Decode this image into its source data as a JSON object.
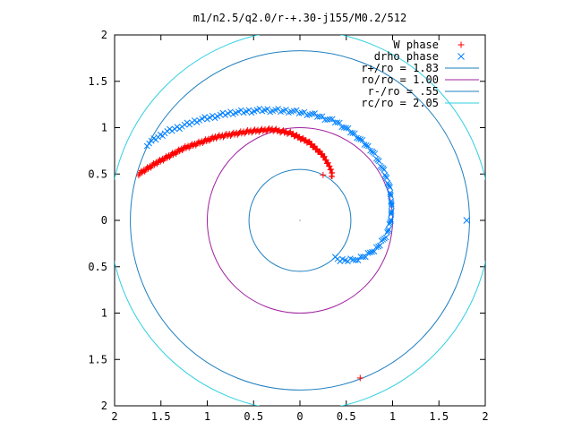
{
  "chart_data": {
    "type": "scatter",
    "title": "m1/n2.5/q2.0/r-+.30-j155/M0.2/512",
    "xlim": [
      -2,
      2
    ],
    "ylim": [
      -2,
      2
    ],
    "x_tick_labels": [
      "2",
      "1.5",
      "1",
      "0.5",
      "0",
      "0.5",
      "1",
      "1.5",
      "2"
    ],
    "y_tick_labels": [
      "2",
      "1.5",
      "1",
      "0.5",
      "0",
      "0.5",
      "1",
      "1.5",
      "2"
    ],
    "grid": false,
    "legend_position": "top-right",
    "series": [
      {
        "name": "W phase",
        "marker": "plus",
        "color": "#ff0000",
        "path": [
          [
            -1.74,
            0.5
          ],
          [
            -1.55,
            0.62
          ],
          [
            -1.25,
            0.78
          ],
          [
            -0.9,
            0.9
          ],
          [
            -0.55,
            0.96
          ],
          [
            -0.3,
            0.98
          ],
          [
            -0.1,
            0.94
          ],
          [
            0.1,
            0.84
          ],
          [
            0.25,
            0.7
          ],
          [
            0.32,
            0.58
          ],
          [
            0.35,
            0.5
          ],
          [
            0.34,
            0.47
          ]
        ],
        "points": [
          [
            0.65,
            -1.7
          ],
          [
            0.25,
            0.49
          ]
        ]
      },
      {
        "name": "drho phase",
        "marker": "cross",
        "color": "#0080ff",
        "path": [
          [
            -1.65,
            0.82
          ],
          [
            -1.45,
            0.95
          ],
          [
            -1.1,
            1.08
          ],
          [
            -0.75,
            1.16
          ],
          [
            -0.4,
            1.19
          ],
          [
            -0.1,
            1.18
          ],
          [
            0.15,
            1.14
          ],
          [
            0.4,
            1.06
          ],
          [
            0.6,
            0.92
          ],
          [
            0.78,
            0.75
          ],
          [
            0.9,
            0.55
          ],
          [
            0.97,
            0.35
          ],
          [
            0.99,
            0.15
          ],
          [
            0.98,
            0.0
          ],
          [
            0.94,
            -0.15
          ],
          [
            0.85,
            -0.28
          ],
          [
            0.72,
            -0.38
          ],
          [
            0.58,
            -0.43
          ],
          [
            0.45,
            -0.43
          ],
          [
            0.38,
            -0.4
          ]
        ],
        "points": [
          [
            1.8,
            0.0
          ]
        ]
      },
      {
        "name": "r+/ro = 1.83",
        "type": "circle",
        "radius": 1.83,
        "color": "#1f7fbf"
      },
      {
        "name": "ro/ro = 1.00",
        "type": "circle",
        "radius": 1.0,
        "color": "#a020a0"
      },
      {
        "name": "r-/ro = .55",
        "type": "circle",
        "radius": 0.55,
        "color": "#1f7fbf"
      },
      {
        "name": "rc/ro = 2.05",
        "type": "circle",
        "radius": 2.05,
        "color": "#2fd0e0"
      }
    ]
  }
}
